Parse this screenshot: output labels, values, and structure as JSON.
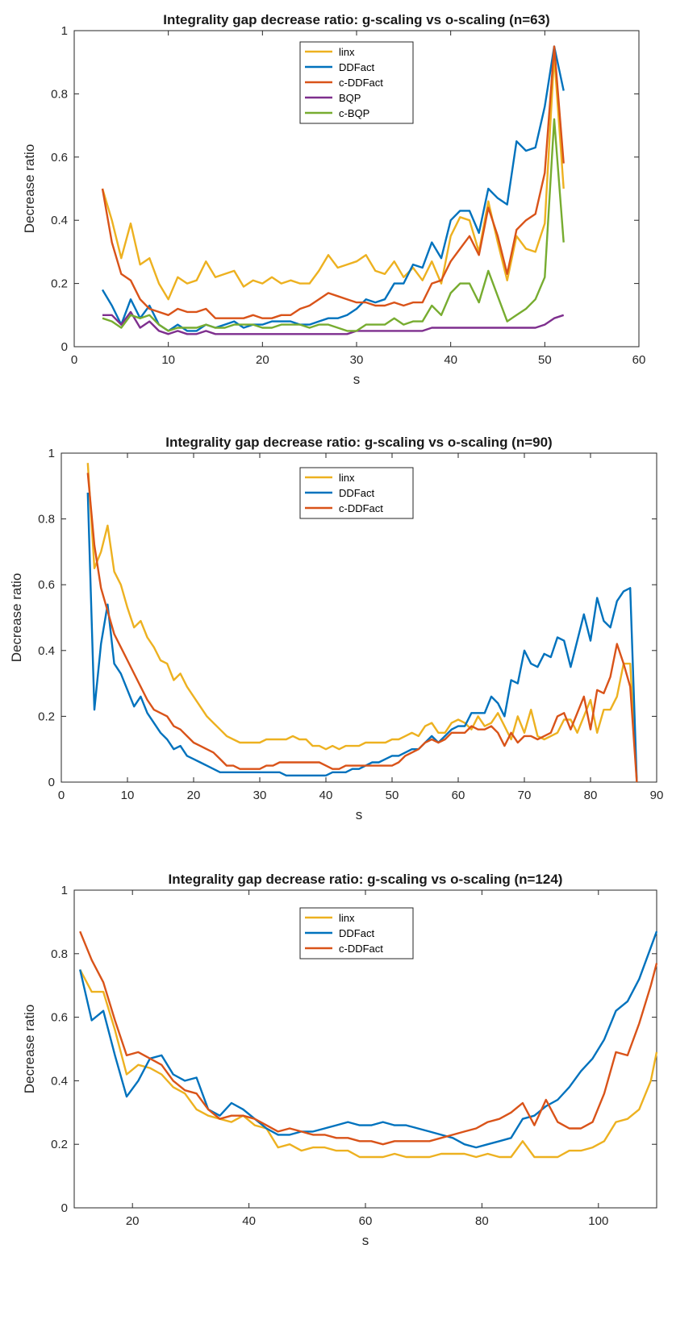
{
  "chart_data": [
    {
      "type": "line",
      "title": "Integrality gap decrease ratio: g-scaling vs o-scaling (n=63)",
      "xlabel": "s",
      "ylabel": "Decrease ratio",
      "xlim": [
        0,
        60
      ],
      "ylim": [
        0,
        1
      ],
      "xticks": [
        "0",
        "10",
        "20",
        "30",
        "40",
        "50",
        "60"
      ],
      "yticks": [
        "0",
        "0.2",
        "0.4",
        "0.6",
        "0.8",
        "1"
      ],
      "legend_position": "top-center",
      "x": [
        3,
        4,
        5,
        6,
        7,
        8,
        9,
        10,
        11,
        12,
        13,
        14,
        15,
        16,
        17,
        18,
        19,
        20,
        21,
        22,
        23,
        24,
        25,
        26,
        27,
        28,
        29,
        30,
        31,
        32,
        33,
        34,
        35,
        36,
        37,
        38,
        39,
        40,
        41,
        42,
        43,
        44,
        45,
        46,
        47,
        48,
        49,
        50,
        51,
        52
      ],
      "series": [
        {
          "name": "linx",
          "color": "#EDB120",
          "values": [
            0.5,
            0.4,
            0.28,
            0.39,
            0.26,
            0.28,
            0.2,
            0.15,
            0.22,
            0.2,
            0.21,
            0.27,
            0.22,
            0.23,
            0.24,
            0.19,
            0.21,
            0.2,
            0.22,
            0.2,
            0.21,
            0.2,
            0.2,
            0.24,
            0.29,
            0.25,
            0.26,
            0.27,
            0.29,
            0.24,
            0.23,
            0.27,
            0.22,
            0.25,
            0.21,
            0.27,
            0.2,
            0.35,
            0.41,
            0.4,
            0.3,
            0.46,
            0.33,
            0.21,
            0.35,
            0.31,
            0.3,
            0.39,
            0.92,
            0.5
          ]
        },
        {
          "name": "DDFact",
          "color": "#0072BD",
          "values": [
            0.18,
            0.13,
            0.07,
            0.15,
            0.09,
            0.13,
            0.07,
            0.05,
            0.07,
            0.05,
            0.05,
            0.07,
            0.06,
            0.07,
            0.08,
            0.06,
            0.07,
            0.07,
            0.08,
            0.08,
            0.08,
            0.07,
            0.07,
            0.08,
            0.09,
            0.09,
            0.1,
            0.12,
            0.15,
            0.14,
            0.15,
            0.2,
            0.2,
            0.26,
            0.25,
            0.33,
            0.28,
            0.4,
            0.43,
            0.43,
            0.36,
            0.5,
            0.47,
            0.45,
            0.65,
            0.62,
            0.63,
            0.76,
            0.95,
            0.81
          ]
        },
        {
          "name": "c-DDFact",
          "color": "#D95319",
          "values": [
            0.5,
            0.33,
            0.23,
            0.21,
            0.15,
            0.12,
            0.11,
            0.1,
            0.12,
            0.11,
            0.11,
            0.12,
            0.09,
            0.09,
            0.09,
            0.09,
            0.1,
            0.09,
            0.09,
            0.1,
            0.1,
            0.12,
            0.13,
            0.15,
            0.17,
            0.16,
            0.15,
            0.14,
            0.14,
            0.13,
            0.13,
            0.14,
            0.13,
            0.14,
            0.14,
            0.2,
            0.21,
            0.27,
            0.31,
            0.35,
            0.29,
            0.44,
            0.35,
            0.23,
            0.37,
            0.4,
            0.42,
            0.55,
            0.95,
            0.58
          ]
        },
        {
          "name": "BQP",
          "color": "#7E2F8E",
          "values": [
            0.1,
            0.1,
            0.07,
            0.11,
            0.06,
            0.08,
            0.05,
            0.04,
            0.05,
            0.04,
            0.04,
            0.05,
            0.04,
            0.04,
            0.04,
            0.04,
            0.04,
            0.04,
            0.04,
            0.04,
            0.04,
            0.04,
            0.04,
            0.04,
            0.04,
            0.04,
            0.04,
            0.05,
            0.05,
            0.05,
            0.05,
            0.05,
            0.05,
            0.05,
            0.05,
            0.06,
            0.06,
            0.06,
            0.06,
            0.06,
            0.06,
            0.06,
            0.06,
            0.06,
            0.06,
            0.06,
            0.06,
            0.07,
            0.09,
            0.1
          ]
        },
        {
          "name": "c-BQP",
          "color": "#77AC30",
          "values": [
            0.09,
            0.08,
            0.06,
            0.1,
            0.09,
            0.1,
            0.07,
            0.05,
            0.06,
            0.06,
            0.06,
            0.07,
            0.06,
            0.06,
            0.07,
            0.07,
            0.07,
            0.06,
            0.06,
            0.07,
            0.07,
            0.07,
            0.06,
            0.07,
            0.07,
            0.06,
            0.05,
            0.05,
            0.07,
            0.07,
            0.07,
            0.09,
            0.07,
            0.08,
            0.08,
            0.13,
            0.1,
            0.17,
            0.2,
            0.2,
            0.14,
            0.24,
            0.16,
            0.08,
            0.1,
            0.12,
            0.15,
            0.22,
            0.72,
            0.33
          ]
        }
      ]
    },
    {
      "type": "line",
      "title": "Integrality gap decrease ratio: g-scaling vs o-scaling (n=90)",
      "xlabel": "s",
      "ylabel": "Decrease ratio",
      "xlim": [
        0,
        90
      ],
      "ylim": [
        0,
        1
      ],
      "xticks": [
        "0",
        "10",
        "20",
        "30",
        "40",
        "50",
        "60",
        "70",
        "80",
        "90"
      ],
      "yticks": [
        "0",
        "0.2",
        "0.4",
        "0.6",
        "0.8",
        "1"
      ],
      "legend_position": "top-center",
      "x": [
        4,
        5,
        6,
        7,
        8,
        9,
        10,
        11,
        12,
        13,
        14,
        15,
        16,
        17,
        18,
        19,
        20,
        21,
        22,
        23,
        24,
        25,
        26,
        27,
        28,
        29,
        30,
        31,
        32,
        33,
        34,
        35,
        36,
        37,
        38,
        39,
        40,
        41,
        42,
        43,
        44,
        45,
        46,
        47,
        48,
        49,
        50,
        51,
        52,
        53,
        54,
        55,
        56,
        57,
        58,
        59,
        60,
        61,
        62,
        63,
        64,
        65,
        66,
        67,
        68,
        69,
        70,
        71,
        72,
        73,
        74,
        75,
        76,
        77,
        78,
        79,
        80,
        81,
        82,
        83,
        84,
        85,
        86,
        87
      ],
      "series": [
        {
          "name": "linx",
          "color": "#EDB120",
          "values": [
            0.97,
            0.65,
            0.7,
            0.78,
            0.64,
            0.6,
            0.53,
            0.47,
            0.49,
            0.44,
            0.41,
            0.37,
            0.36,
            0.31,
            0.33,
            0.29,
            0.26,
            0.23,
            0.2,
            0.18,
            0.16,
            0.14,
            0.13,
            0.12,
            0.12,
            0.12,
            0.12,
            0.13,
            0.13,
            0.13,
            0.13,
            0.14,
            0.13,
            0.13,
            0.11,
            0.11,
            0.1,
            0.11,
            0.1,
            0.11,
            0.11,
            0.11,
            0.12,
            0.12,
            0.12,
            0.12,
            0.13,
            0.13,
            0.14,
            0.15,
            0.14,
            0.17,
            0.18,
            0.15,
            0.15,
            0.18,
            0.19,
            0.18,
            0.16,
            0.2,
            0.17,
            0.18,
            0.21,
            0.17,
            0.13,
            0.2,
            0.15,
            0.22,
            0.14,
            0.13,
            0.14,
            0.15,
            0.19,
            0.19,
            0.15,
            0.2,
            0.25,
            0.15,
            0.22,
            0.22,
            0.26,
            0.36,
            0.36,
            0.0
          ]
        },
        {
          "name": "DDFact",
          "color": "#0072BD",
          "values": [
            0.88,
            0.22,
            0.42,
            0.54,
            0.36,
            0.33,
            0.28,
            0.23,
            0.26,
            0.21,
            0.18,
            0.15,
            0.13,
            0.1,
            0.11,
            0.08,
            0.07,
            0.06,
            0.05,
            0.04,
            0.03,
            0.03,
            0.03,
            0.03,
            0.03,
            0.03,
            0.03,
            0.03,
            0.03,
            0.03,
            0.02,
            0.02,
            0.02,
            0.02,
            0.02,
            0.02,
            0.02,
            0.03,
            0.03,
            0.03,
            0.04,
            0.04,
            0.05,
            0.06,
            0.06,
            0.07,
            0.08,
            0.08,
            0.09,
            0.1,
            0.1,
            0.12,
            0.14,
            0.12,
            0.14,
            0.16,
            0.17,
            0.17,
            0.21,
            0.21,
            0.21,
            0.26,
            0.24,
            0.2,
            0.31,
            0.3,
            0.4,
            0.36,
            0.35,
            0.39,
            0.38,
            0.44,
            0.43,
            0.35,
            0.43,
            0.51,
            0.43,
            0.56,
            0.49,
            0.47,
            0.55,
            0.58,
            0.59,
            0.0
          ]
        },
        {
          "name": "c-DDFact",
          "color": "#D95319",
          "values": [
            0.94,
            0.72,
            0.59,
            0.52,
            0.45,
            0.41,
            0.37,
            0.33,
            0.29,
            0.25,
            0.22,
            0.21,
            0.2,
            0.17,
            0.16,
            0.14,
            0.12,
            0.11,
            0.1,
            0.09,
            0.07,
            0.05,
            0.05,
            0.04,
            0.04,
            0.04,
            0.04,
            0.05,
            0.05,
            0.06,
            0.06,
            0.06,
            0.06,
            0.06,
            0.06,
            0.06,
            0.05,
            0.04,
            0.04,
            0.05,
            0.05,
            0.05,
            0.05,
            0.05,
            0.05,
            0.05,
            0.05,
            0.06,
            0.08,
            0.09,
            0.1,
            0.12,
            0.13,
            0.12,
            0.13,
            0.15,
            0.15,
            0.15,
            0.17,
            0.16,
            0.16,
            0.17,
            0.15,
            0.11,
            0.15,
            0.12,
            0.14,
            0.14,
            0.13,
            0.14,
            0.15,
            0.2,
            0.21,
            0.16,
            0.21,
            0.26,
            0.16,
            0.28,
            0.27,
            0.32,
            0.42,
            0.36,
            0.29,
            0.0
          ]
        }
      ]
    },
    {
      "type": "line",
      "title": "Integrality gap decrease ratio: g-scaling vs o-scaling (n=124)",
      "xlabel": "s",
      "ylabel": "Decrease ratio",
      "xlim": [
        10,
        110
      ],
      "ylim": [
        0,
        1
      ],
      "xticks": [
        "20",
        "40",
        "60",
        "80",
        "100"
      ],
      "yticks": [
        "0",
        "0.2",
        "0.4",
        "0.6",
        "0.8",
        "1"
      ],
      "legend_position": "top-center",
      "x": [
        11,
        13,
        15,
        17,
        19,
        21,
        23,
        25,
        27,
        29,
        31,
        33,
        35,
        37,
        39,
        41,
        43,
        45,
        47,
        49,
        51,
        53,
        55,
        57,
        59,
        61,
        63,
        65,
        67,
        69,
        71,
        73,
        75,
        77,
        79,
        81,
        83,
        85,
        87,
        89,
        91,
        93,
        95,
        97,
        99,
        101,
        103,
        105,
        107,
        109,
        110
      ],
      "series": [
        {
          "name": "linx",
          "color": "#EDB120",
          "values": [
            0.75,
            0.68,
            0.68,
            0.56,
            0.42,
            0.45,
            0.44,
            0.42,
            0.38,
            0.36,
            0.31,
            0.29,
            0.28,
            0.27,
            0.29,
            0.26,
            0.25,
            0.19,
            0.2,
            0.18,
            0.19,
            0.19,
            0.18,
            0.18,
            0.16,
            0.16,
            0.16,
            0.17,
            0.16,
            0.16,
            0.16,
            0.17,
            0.17,
            0.17,
            0.16,
            0.17,
            0.16,
            0.16,
            0.21,
            0.16,
            0.16,
            0.16,
            0.18,
            0.18,
            0.19,
            0.21,
            0.27,
            0.28,
            0.31,
            0.4,
            0.49
          ]
        },
        {
          "name": "DDFact",
          "color": "#0072BD",
          "values": [
            0.75,
            0.59,
            0.62,
            0.48,
            0.35,
            0.4,
            0.47,
            0.48,
            0.42,
            0.4,
            0.41,
            0.31,
            0.29,
            0.33,
            0.31,
            0.28,
            0.25,
            0.23,
            0.23,
            0.24,
            0.24,
            0.25,
            0.26,
            0.27,
            0.26,
            0.26,
            0.27,
            0.26,
            0.26,
            0.25,
            0.24,
            0.23,
            0.22,
            0.2,
            0.19,
            0.2,
            0.21,
            0.22,
            0.28,
            0.29,
            0.32,
            0.34,
            0.38,
            0.43,
            0.47,
            0.53,
            0.62,
            0.65,
            0.72,
            0.82,
            0.87
          ]
        },
        {
          "name": "c-DDFact",
          "color": "#D95319",
          "values": [
            0.87,
            0.78,
            0.71,
            0.59,
            0.48,
            0.49,
            0.47,
            0.45,
            0.4,
            0.37,
            0.36,
            0.31,
            0.28,
            0.29,
            0.29,
            0.28,
            0.26,
            0.24,
            0.25,
            0.24,
            0.23,
            0.23,
            0.22,
            0.22,
            0.21,
            0.21,
            0.2,
            0.21,
            0.21,
            0.21,
            0.21,
            0.22,
            0.23,
            0.24,
            0.25,
            0.27,
            0.28,
            0.3,
            0.33,
            0.26,
            0.34,
            0.27,
            0.25,
            0.25,
            0.27,
            0.36,
            0.49,
            0.48,
            0.58,
            0.7,
            0.77
          ]
        }
      ]
    }
  ]
}
